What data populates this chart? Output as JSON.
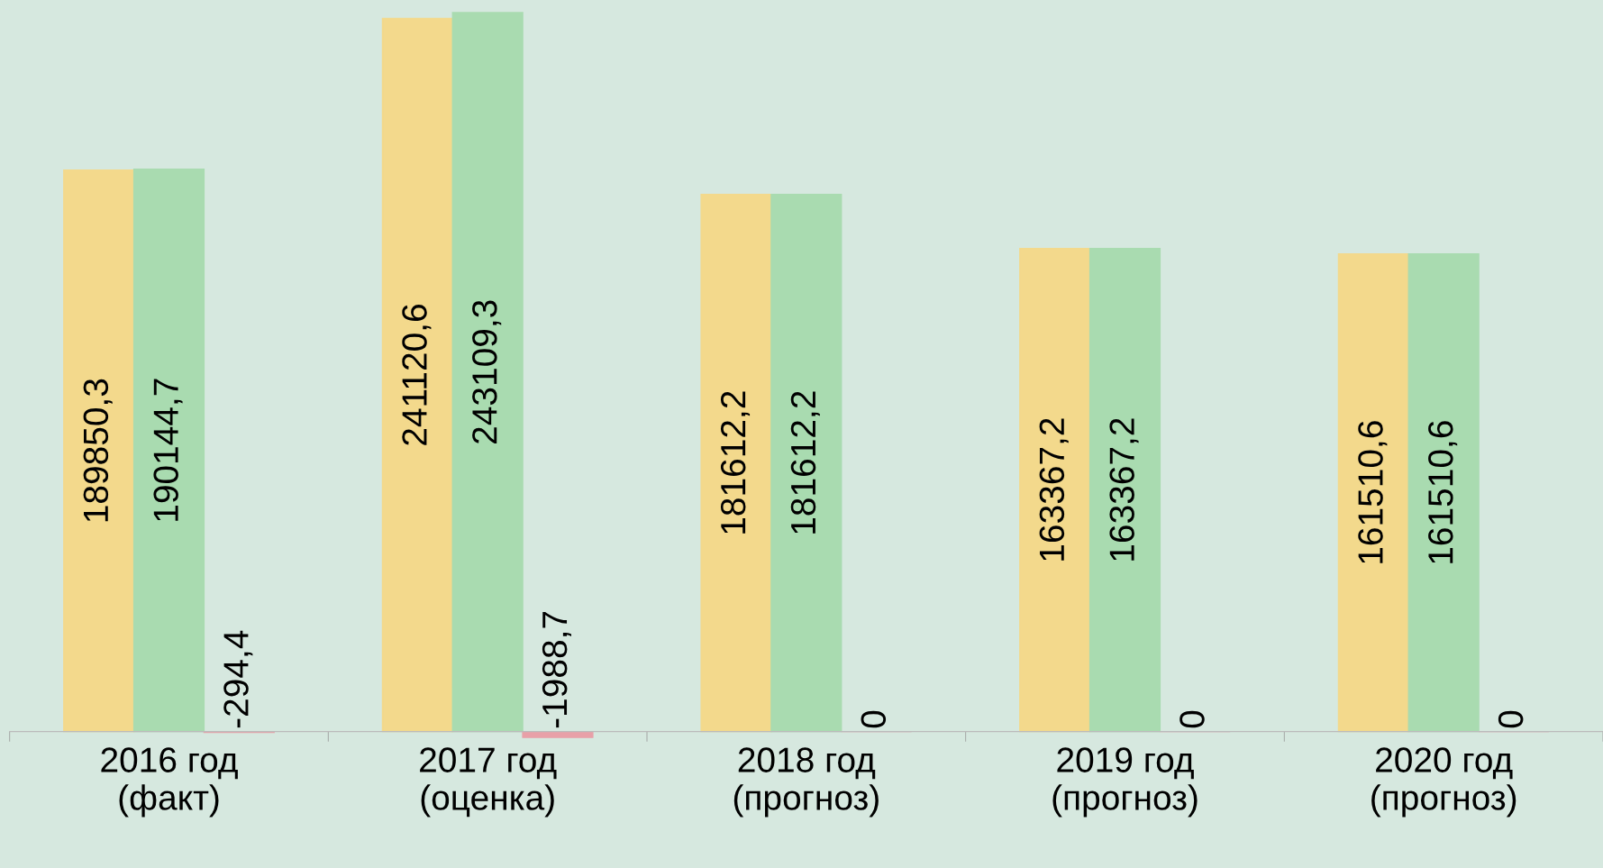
{
  "chart_data": {
    "type": "bar",
    "categories": [
      "2016 год\n(факт)",
      "2017 год\n(оценка)",
      "2018 год\n(прогноз)",
      "2019 год\n(прогноз)",
      "2020 год\n(прогноз)"
    ],
    "series": [
      {
        "color": "#f3d98c",
        "values": [
          189850.3,
          241120.6,
          181612.2,
          163367.2,
          161510.6
        ],
        "value_labels": [
          "189850,3",
          "241120,6",
          "181612,2",
          "163367,2",
          "161510,6"
        ]
      },
      {
        "color": "#a9dbb0",
        "values": [
          190144.7,
          243109.3,
          181612.2,
          163367.2,
          161510.6
        ],
        "value_labels": [
          "190144,7",
          "243109,3",
          "181612,2",
          "163367,2",
          "161510,6"
        ]
      },
      {
        "color": "#e8a0a8",
        "values": [
          -294.4,
          -1988.7,
          0,
          0,
          0
        ],
        "value_labels": [
          "-294,4",
          "-1988,7",
          "0",
          "0",
          "0"
        ]
      }
    ],
    "grid": false,
    "legend": false
  }
}
